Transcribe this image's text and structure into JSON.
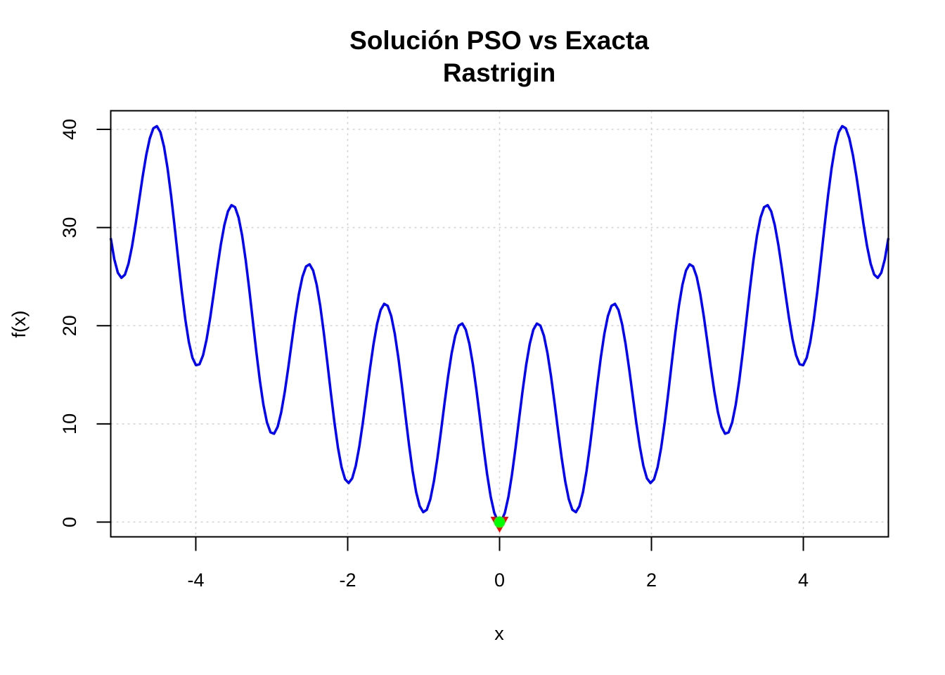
{
  "chart_data": {
    "type": "line",
    "title": "Solución PSO vs Exacta",
    "subtitle": "Rastrigin",
    "xlabel": "x",
    "ylabel": "f(x)",
    "xlim": [
      -5.12,
      5.12
    ],
    "ylim": [
      -1.5,
      41.9
    ],
    "xticks": [
      -4,
      -2,
      0,
      2,
      4
    ],
    "yticks": [
      0,
      10,
      20,
      30,
      40
    ],
    "grid": true,
    "series": [
      {
        "function": "f(x) = 10 + x^2 - 10*cos(2*pi*x)",
        "x_range": [
          -5.12,
          5.12
        ],
        "n_points": 220,
        "color": "#0000ff"
      }
    ],
    "points": [
      {
        "x": 0,
        "y": 0,
        "marker": "triangle-down",
        "color": "#ff0000"
      },
      {
        "x": 0,
        "y": 0,
        "marker": "circle",
        "color": "#00ff00"
      }
    ]
  }
}
